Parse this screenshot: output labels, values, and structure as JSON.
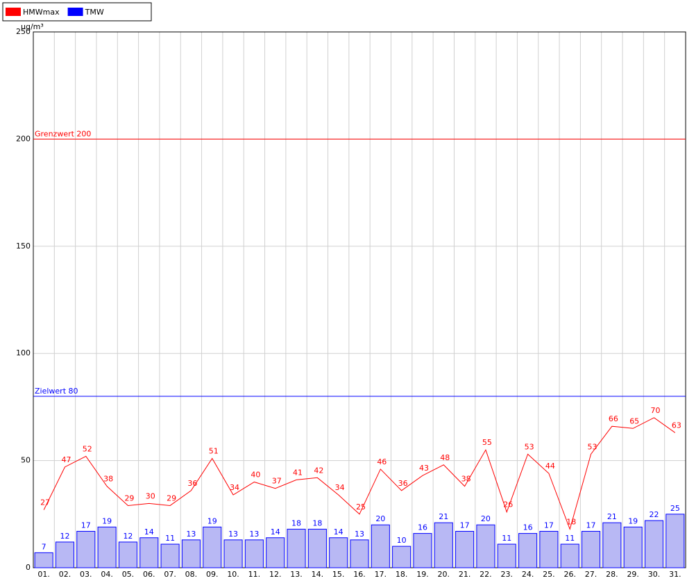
{
  "chart_data": {
    "type": "bar_line",
    "y_unit": "µg/m³",
    "categories": [
      "01.",
      "02.",
      "03.",
      "04.",
      "05.",
      "06.",
      "07.",
      "08.",
      "09.",
      "10.",
      "11.",
      "12.",
      "13.",
      "14.",
      "15.",
      "16.",
      "17.",
      "18.",
      "19.",
      "20.",
      "21.",
      "22.",
      "23.",
      "24.",
      "25.",
      "26.",
      "27.",
      "28.",
      "29.",
      "30.",
      "31."
    ],
    "series": [
      {
        "name": "HMWmax",
        "color": "#ff0000",
        "kind": "line",
        "values": [
          27,
          47,
          52,
          38,
          29,
          30,
          29,
          36,
          51,
          34,
          40,
          37,
          41,
          42,
          34,
          25,
          46,
          36,
          43,
          48,
          38,
          55,
          26,
          53,
          44,
          18,
          53,
          66,
          65,
          70,
          63
        ]
      },
      {
        "name": "TMW",
        "color": "#0000ff",
        "kind": "bar",
        "values": [
          7,
          12,
          17,
          19,
          12,
          14,
          11,
          13,
          19,
          13,
          13,
          14,
          18,
          18,
          14,
          13,
          20,
          10,
          16,
          21,
          17,
          20,
          11,
          16,
          17,
          11,
          17,
          21,
          19,
          22,
          25
        ]
      }
    ],
    "reference_lines": [
      {
        "label": "Grenzwert 200",
        "value": 200,
        "color": "#ff0000"
      },
      {
        "label": "Zielwert 80",
        "value": 80,
        "color": "#0000ff"
      }
    ],
    "ylim": [
      0,
      250
    ],
    "yticks": [
      0,
      50,
      100,
      150,
      200,
      250
    ],
    "grid": true
  }
}
